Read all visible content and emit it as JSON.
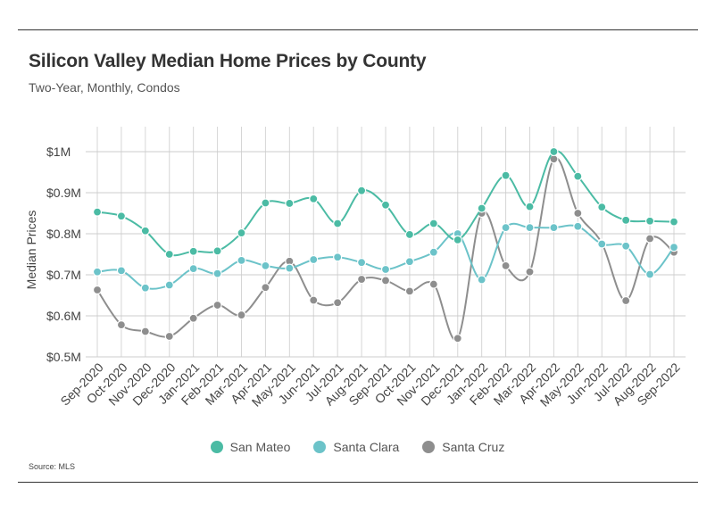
{
  "title": "Silicon Valley Median Home Prices by County",
  "subtitle": "Two-Year, Monthly, Condos",
  "source": "Source:  MLS",
  "chart_data": {
    "type": "line",
    "title": "Silicon Valley Median Home Prices by County",
    "subtitle": "Two-Year, Monthly, Condos",
    "xlabel": "",
    "ylabel": "Median Prices",
    "ylim": [
      500000,
      1000000
    ],
    "yticks": [
      500000,
      600000,
      700000,
      800000,
      900000,
      1000000
    ],
    "ytick_labels": [
      "$0.5M",
      "$0.6M",
      "$0.7M",
      "$0.8M",
      "$0.9M",
      "$1M"
    ],
    "grid": "vertical and horizontal",
    "legend_position": "bottom",
    "categories": [
      "Sep-2020",
      "Oct-2020",
      "Nov-2020",
      "Dec-2020",
      "Jan-2021",
      "Feb-2021",
      "Mar-2021",
      "Apr-2021",
      "May-2021",
      "Jun-2021",
      "Jul-2021",
      "Aug-2021",
      "Sep-2021",
      "Oct-2021",
      "Nov-2021",
      "Dec-2021",
      "Jan-2022",
      "Feb-2022",
      "Mar-2022",
      "Apr-2022",
      "May-2022",
      "Jun-2022",
      "Jul-2022",
      "Aug-2022",
      "Sep-2022"
    ],
    "series": [
      {
        "name": "San Mateo",
        "color": "#4bbba4",
        "values": [
          853000,
          843000,
          807000,
          750000,
          757000,
          758000,
          802000,
          875000,
          874000,
          885000,
          825000,
          905000,
          870000,
          798000,
          825000,
          785000,
          862000,
          942000,
          866000,
          1000000,
          940000,
          865000,
          833000,
          831000,
          829000
        ]
      },
      {
        "name": "Santa Clara",
        "color": "#6cc3c9",
        "values": [
          707000,
          710000,
          668000,
          675000,
          715000,
          703000,
          735000,
          722000,
          716000,
          737000,
          743000,
          730000,
          713000,
          732000,
          755000,
          800000,
          688000,
          815000,
          815000,
          815000,
          818000,
          775000,
          770000,
          701000,
          767000
        ]
      },
      {
        "name": "Santa Cruz",
        "color": "#8e8e8e",
        "values": [
          663000,
          578000,
          562000,
          550000,
          594000,
          626000,
          602000,
          669000,
          733000,
          638000,
          632000,
          689000,
          686000,
          660000,
          677000,
          545000,
          850000,
          722000,
          707000,
          982000,
          850000,
          777000,
          637000,
          788000,
          755000
        ]
      }
    ]
  }
}
